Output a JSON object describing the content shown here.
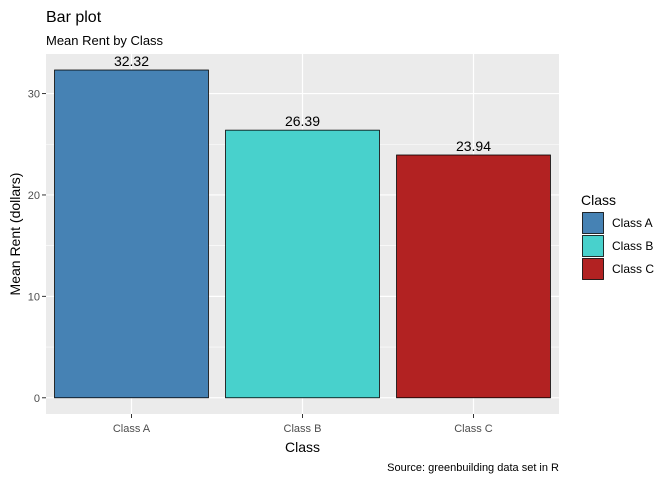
{
  "chart_data": {
    "type": "bar",
    "title": "Bar plot",
    "subtitle": "Mean Rent by Class",
    "xlabel": "Class",
    "ylabel": "Mean Rent (dollars)",
    "caption": "Source: greenbuilding data set in R",
    "categories": [
      "Class A",
      "Class B",
      "Class C"
    ],
    "values": [
      32.32,
      26.39,
      23.94
    ],
    "data_labels": [
      "32.32",
      "26.39",
      "23.94"
    ],
    "colors": [
      "#4682B4",
      "#48D1CC",
      "#B22222"
    ],
    "ylim": [
      -1.6,
      33.9
    ],
    "yticks": [
      0,
      10,
      20,
      30
    ],
    "grid": true,
    "panel_background": "#EBEBEB",
    "legend": {
      "title": "Class",
      "position": "right",
      "entries": [
        "Class A",
        "Class B",
        "Class C"
      ]
    }
  }
}
